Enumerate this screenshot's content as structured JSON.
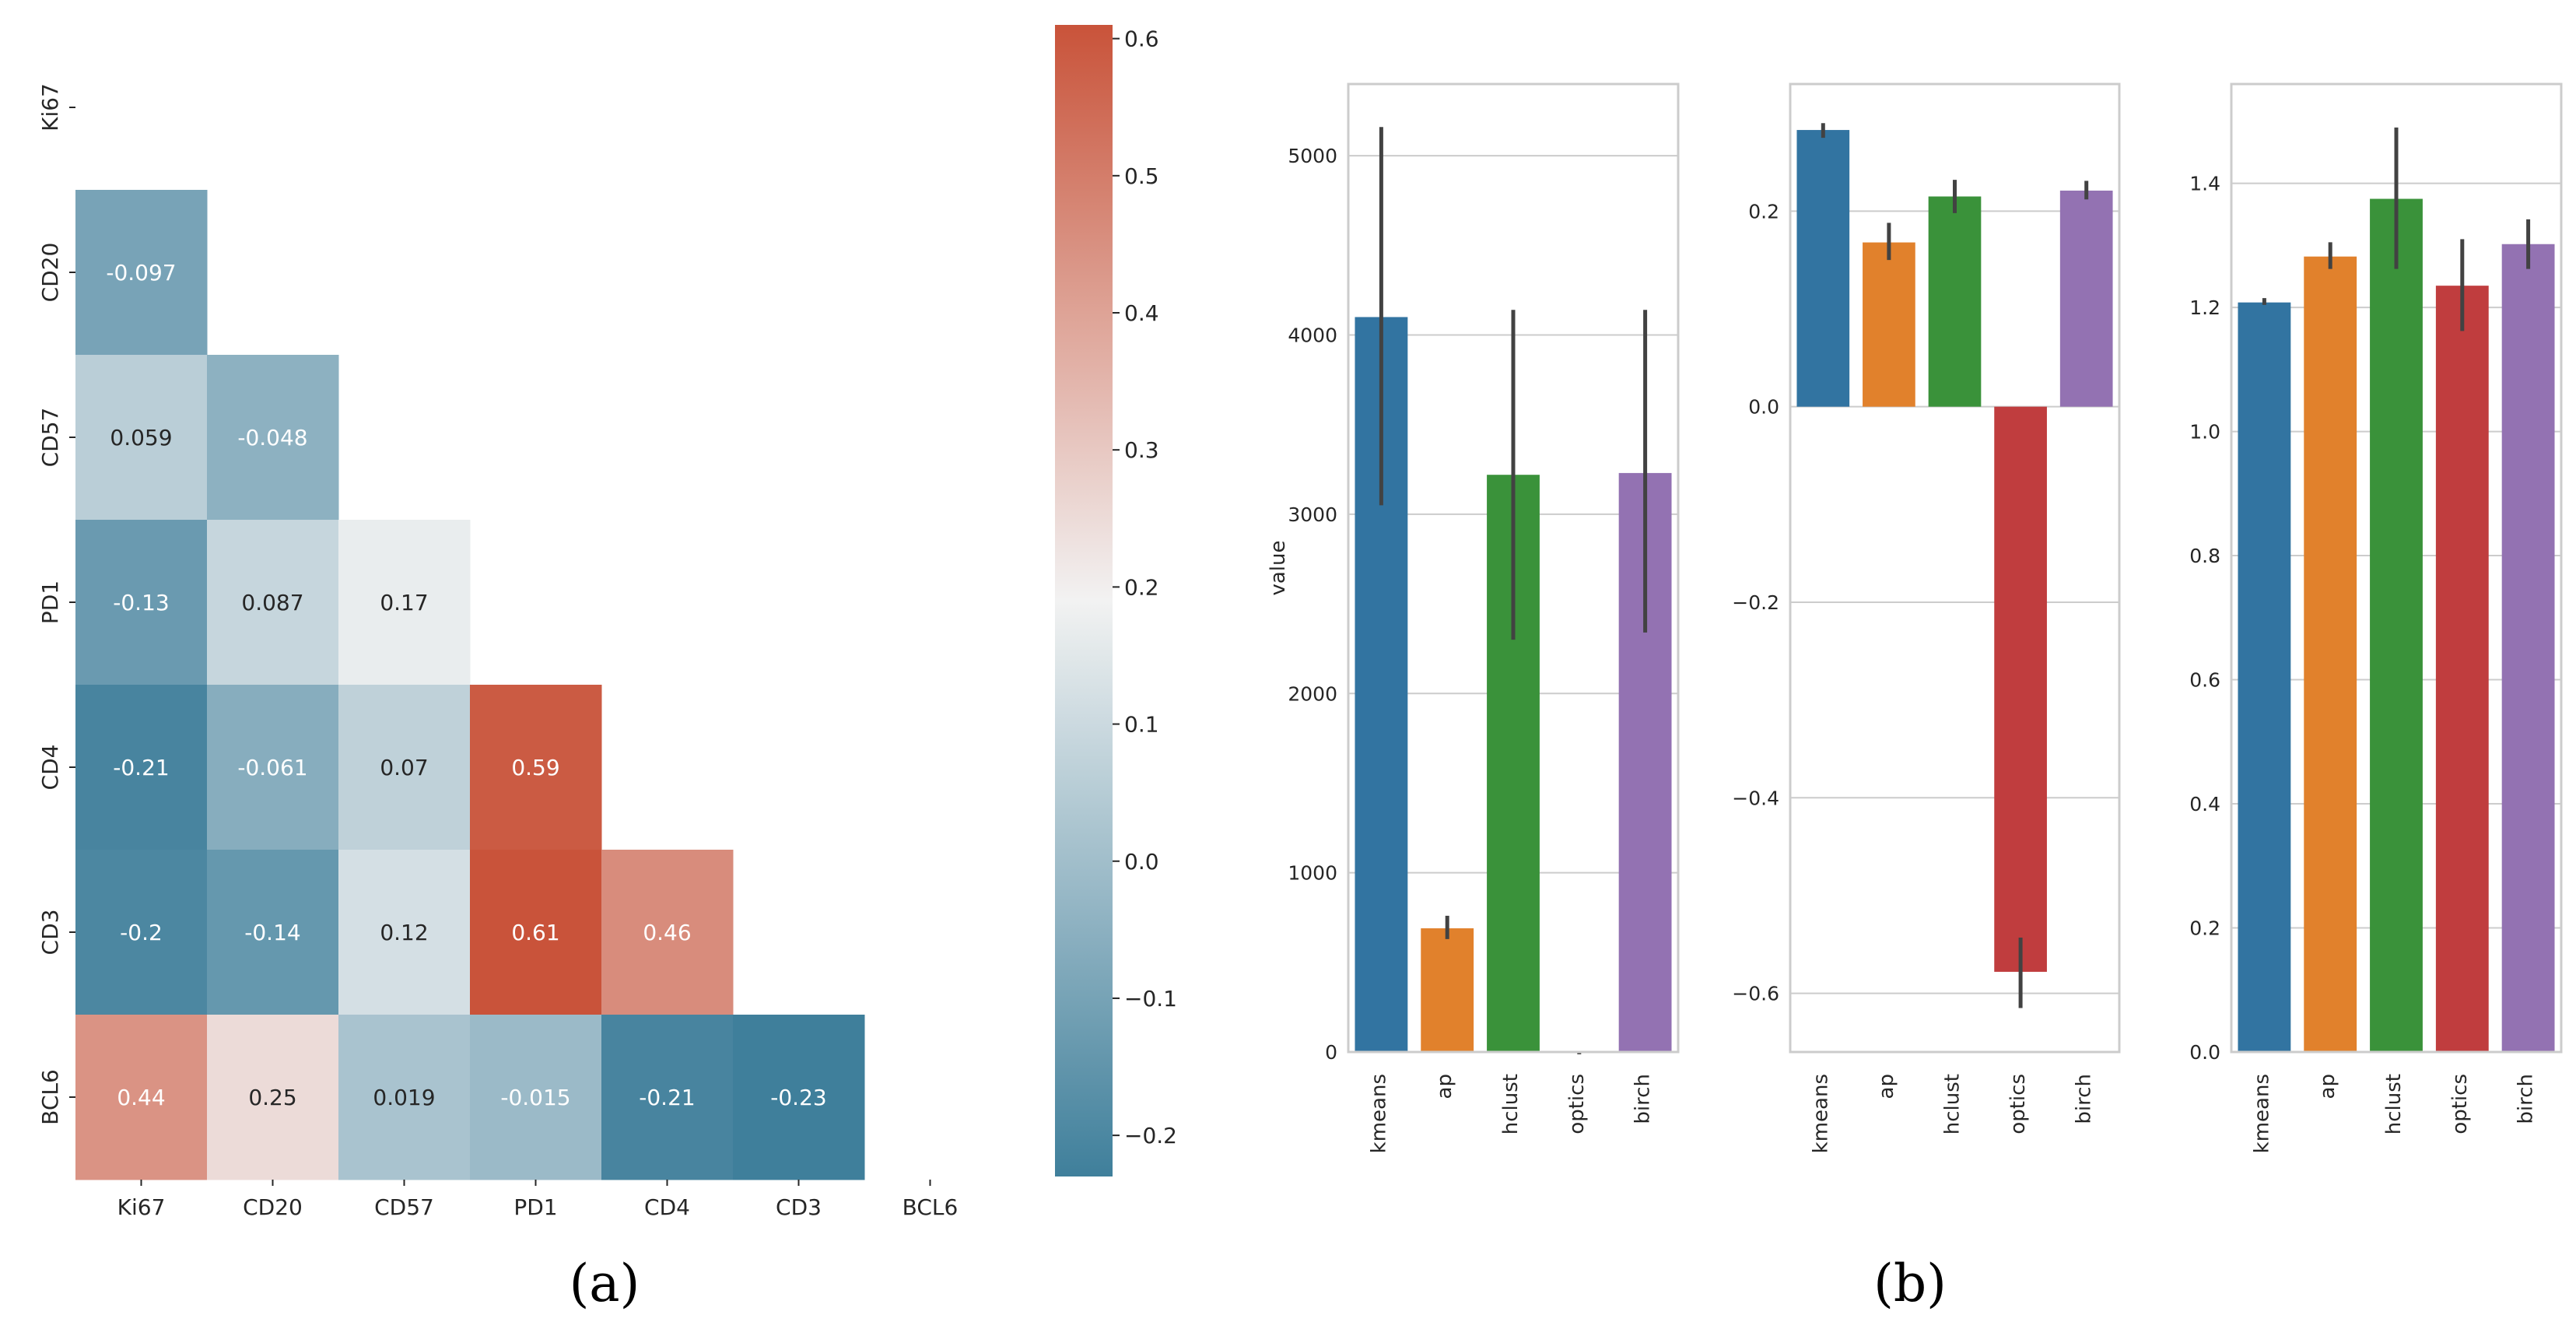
{
  "panel_labels": [
    "(a)",
    "(b)"
  ],
  "colors": {
    "heat_neg": "#3f7f9b",
    "heat_mid": "#f2f2f2",
    "heat_pos": "#c9533a",
    "kmeans": "#3274a1",
    "ap": "#e1812c",
    "hclust": "#3a923a",
    "optics": "#c03d3e",
    "birch": "#9372b2",
    "errbar": "#424242",
    "grid": "#cccccc",
    "spine": "#cccccc"
  },
  "chart_data": [
    {
      "type": "heatmap",
      "panel": "(a)",
      "labels": [
        "Ki67",
        "CD20",
        "CD57",
        "PD1",
        "CD4",
        "CD3",
        "BCL6"
      ],
      "lower_triangle": [
        [],
        [
          -0.097
        ],
        [
          0.059,
          -0.048
        ],
        [
          -0.13,
          0.087,
          0.17
        ],
        [
          -0.21,
          -0.061,
          0.07,
          0.59
        ],
        [
          -0.2,
          -0.14,
          0.12,
          0.61,
          0.46
        ],
        [
          0.44,
          0.25,
          0.019,
          -0.015,
          -0.21,
          -0.23
        ]
      ],
      "cell_labels": [
        [],
        [
          "-0.097"
        ],
        [
          "0.059",
          "-0.048"
        ],
        [
          "-0.13",
          "0.087",
          "0.17"
        ],
        [
          "-0.21",
          "-0.061",
          "0.07",
          "0.59"
        ],
        [
          "-0.2",
          "-0.14",
          "0.12",
          "0.61",
          "0.46"
        ],
        [
          "0.44",
          "0.25",
          "0.019",
          "-0.015",
          "-0.21",
          "-0.23"
        ]
      ],
      "colorbar": {
        "range": [
          -0.23,
          0.61
        ],
        "center": 0.19,
        "ticks": [
          -0.2,
          -0.1,
          0.0,
          0.1,
          0.2,
          0.3,
          0.4,
          0.5,
          0.6
        ],
        "tick_labels": [
          "−0.2",
          "−0.1",
          "0.0",
          "0.1",
          "0.2",
          "0.3",
          "0.4",
          "0.5",
          "0.6"
        ]
      }
    },
    {
      "type": "bar",
      "panel": "(b)",
      "categories": [
        "kmeans",
        "ap",
        "hclust",
        "optics",
        "birch"
      ],
      "ylabel": "value",
      "ylim": [
        0,
        5400
      ],
      "yticks": [
        0,
        1000,
        2000,
        3000,
        4000,
        5000
      ],
      "ytick_labels": [
        "0",
        "1000",
        "2000",
        "3000",
        "4000",
        "5000"
      ],
      "values": [
        4100,
        690,
        3220,
        0,
        3230
      ],
      "err_low": [
        3050,
        630,
        2300,
        0,
        2340
      ],
      "err_high": [
        5160,
        760,
        4140,
        0,
        4140
      ],
      "grid": true
    },
    {
      "type": "bar",
      "panel": "(b)",
      "categories": [
        "kmeans",
        "ap",
        "hclust",
        "optics",
        "birch"
      ],
      "ylabel": "",
      "ylim": [
        -0.66,
        0.33
      ],
      "yticks": [
        -0.6,
        -0.4,
        -0.2,
        0.0,
        0.2
      ],
      "ytick_labels": [
        "−0.6",
        "−0.4",
        "−0.2",
        "0.0",
        "0.2"
      ],
      "values": [
        0.283,
        0.168,
        0.215,
        -0.578,
        0.221
      ],
      "err_low": [
        0.275,
        0.15,
        0.198,
        -0.615,
        0.212
      ],
      "err_high": [
        0.29,
        0.188,
        0.232,
        -0.543,
        0.231
      ],
      "grid": true
    },
    {
      "type": "bar",
      "panel": "(b)",
      "categories": [
        "kmeans",
        "ap",
        "hclust",
        "optics",
        "birch"
      ],
      "ylabel": "",
      "ylim": [
        0,
        1.56
      ],
      "yticks": [
        0.0,
        0.2,
        0.4,
        0.6,
        0.8,
        1.0,
        1.2,
        1.4
      ],
      "ytick_labels": [
        "0.0",
        "0.2",
        "0.4",
        "0.6",
        "0.8",
        "1.0",
        "1.2",
        "1.4"
      ],
      "values": [
        1.208,
        1.282,
        1.375,
        1.235,
        1.302
      ],
      "err_low": [
        1.204,
        1.262,
        1.262,
        1.162,
        1.262
      ],
      "err_high": [
        1.215,
        1.305,
        1.49,
        1.31,
        1.342
      ],
      "grid": true
    }
  ]
}
